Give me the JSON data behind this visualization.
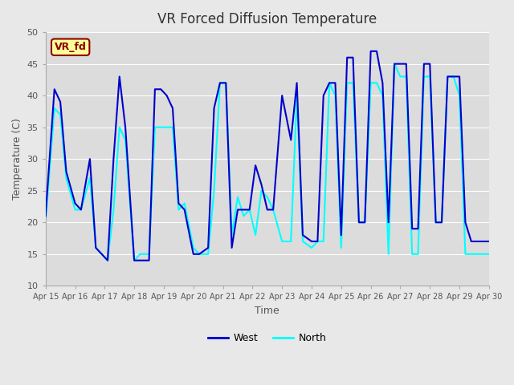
{
  "title": "VR Forced Diffusion Temperature",
  "xlabel": "Time",
  "ylabel": "Temperature (C)",
  "ylim": [
    10,
    50
  ],
  "xlim": [
    0,
    15
  ],
  "xtick_labels": [
    "Apr 15",
    "Apr 16",
    "Apr 17",
    "Apr 18",
    "Apr 19",
    "Apr 20",
    "Apr 21",
    "Apr 22",
    "Apr 23",
    "Apr 24",
    "Apr 25",
    "Apr 26",
    "Apr 27",
    "Apr 28",
    "Apr 29",
    "Apr 30"
  ],
  "ytick_values": [
    10,
    15,
    20,
    25,
    30,
    35,
    40,
    45,
    50
  ],
  "legend_label_west": "West",
  "legend_label_north": "North",
  "color_west": "#0000CD",
  "color_north": "#00FFFF",
  "annotation_text": "VR_fd",
  "annotation_bg": "#FFFF99",
  "annotation_border": "#8B0000",
  "background_color": "#E8E8E8",
  "plot_bg_color": "#DCDCDC",
  "west_x": [
    0,
    0.3,
    0.5,
    0.7,
    1.0,
    1.2,
    1.5,
    1.7,
    1.9,
    2.1,
    2.3,
    2.5,
    2.7,
    3.0,
    3.2,
    3.5,
    3.7,
    3.9,
    4.1,
    4.3,
    4.5,
    4.7,
    5.0,
    5.2,
    5.5,
    5.7,
    5.9,
    6.1,
    6.3,
    6.5,
    6.7,
    6.9,
    7.1,
    7.3,
    7.5,
    7.7,
    8.0,
    8.3,
    8.5,
    8.7,
    9.0,
    9.2,
    9.4,
    9.6,
    9.8,
    10.0,
    10.2,
    10.4,
    10.6,
    10.8,
    11.0,
    11.2,
    11.4,
    11.6,
    11.8,
    12.0,
    12.2,
    12.4,
    12.6,
    12.8,
    13.0,
    13.2,
    13.4,
    13.6,
    13.8,
    14.0,
    14.2,
    14.4,
    14.6,
    14.8,
    15.0
  ],
  "west_y": [
    21,
    41,
    39,
    28,
    23,
    22,
    30,
    16,
    15,
    14,
    30,
    43,
    35,
    14,
    14,
    14,
    41,
    41,
    40,
    38,
    23,
    22,
    15,
    15,
    16,
    38,
    42,
    42,
    16,
    22,
    22,
    22,
    29,
    26,
    22,
    22,
    40,
    33,
    42,
    18,
    17,
    17,
    40,
    42,
    42,
    18,
    46,
    46,
    20,
    20,
    47,
    47,
    42,
    20,
    45,
    45,
    45,
    19,
    19,
    45,
    45,
    20,
    20,
    43,
    43,
    43,
    20,
    17,
    17,
    17,
    17
  ],
  "north_x": [
    0,
    0.3,
    0.5,
    0.7,
    1.0,
    1.2,
    1.5,
    1.7,
    1.9,
    2.1,
    2.3,
    2.5,
    2.7,
    3.0,
    3.2,
    3.5,
    3.7,
    3.9,
    4.1,
    4.3,
    4.5,
    4.7,
    5.0,
    5.2,
    5.5,
    5.7,
    5.9,
    6.1,
    6.3,
    6.5,
    6.7,
    6.9,
    7.1,
    7.3,
    7.5,
    7.7,
    8.0,
    8.3,
    8.5,
    8.7,
    9.0,
    9.2,
    9.4,
    9.6,
    9.8,
    10.0,
    10.2,
    10.4,
    10.6,
    10.8,
    11.0,
    11.2,
    11.4,
    11.6,
    11.8,
    12.0,
    12.2,
    12.4,
    12.6,
    12.8,
    13.0,
    13.2,
    13.4,
    13.6,
    13.8,
    14.0,
    14.2,
    14.4,
    14.6,
    14.8,
    15.0
  ],
  "north_y": [
    20,
    38,
    37,
    27,
    22,
    22,
    27,
    16,
    15,
    14,
    22,
    35,
    33,
    14,
    15,
    15,
    35,
    35,
    35,
    35,
    22,
    23,
    16,
    15,
    15,
    25,
    42,
    42,
    18,
    24,
    21,
    22,
    18,
    25,
    24,
    22,
    17,
    17,
    40,
    17,
    16,
    17,
    17,
    42,
    40,
    16,
    42,
    42,
    20,
    20,
    42,
    42,
    40,
    15,
    45,
    43,
    43,
    15,
    15,
    43,
    43,
    20,
    20,
    43,
    43,
    40,
    15,
    15,
    15,
    15,
    15
  ]
}
